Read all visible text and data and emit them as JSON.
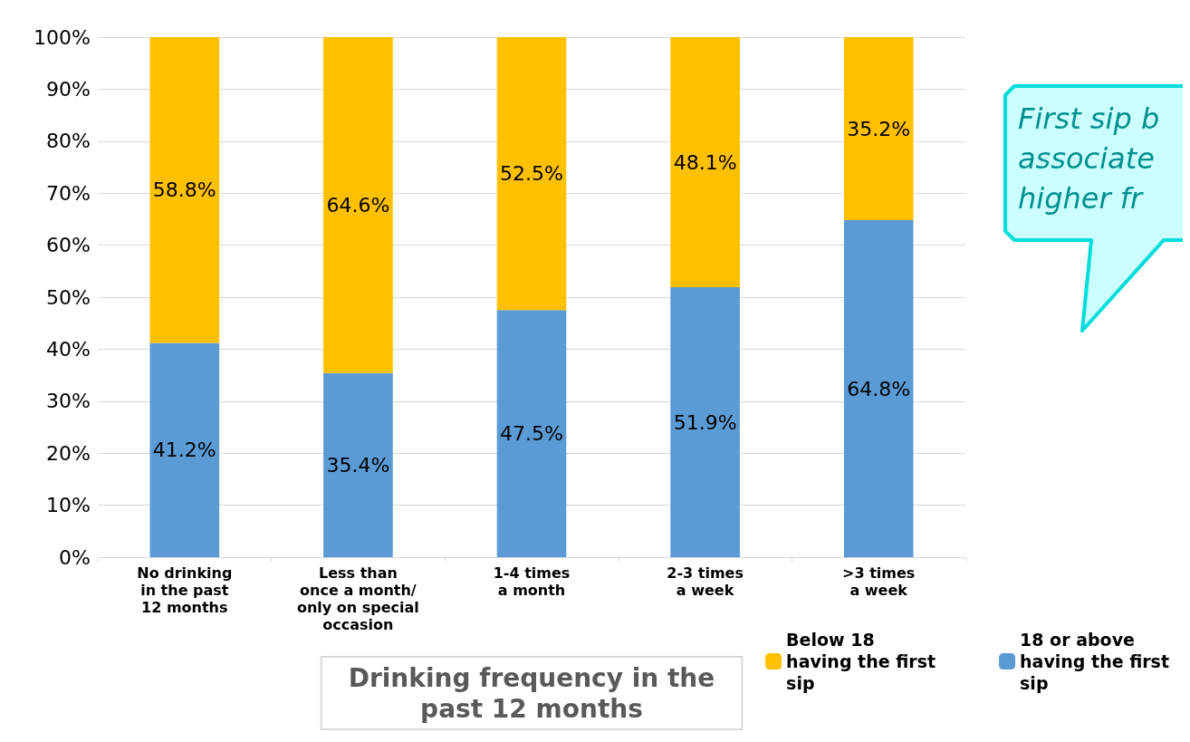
{
  "chart_data": {
    "type": "bar",
    "stacked": true,
    "xlabel": "Drinking frequency in the\npast 12 months",
    "categories": [
      "No drinking\nin the past\n12 months",
      "Less than\nonce a month/\nonly on special\noccasion",
      "1-4 times\na month",
      "2-3 times\na week",
      ">3 times\na week"
    ],
    "series": [
      {
        "name": "18 or above\nhaving the first\nsip",
        "color": "#5b9bd5",
        "values": [
          41.2,
          35.4,
          47.5,
          51.9,
          64.8
        ],
        "value_labels": [
          "41.2%",
          "35.4%",
          "47.5%",
          "51.9%",
          "64.8%"
        ]
      },
      {
        "name": "Below 18\nhaving the first\nsip",
        "color": "#ffc000",
        "values": [
          58.8,
          64.6,
          52.5,
          48.1,
          35.2
        ],
        "value_labels": [
          "58.8%",
          "64.6%",
          "52.5%",
          "48.1%",
          "35.2%"
        ]
      }
    ],
    "ylim": [
      0,
      100
    ],
    "yticks": [
      {
        "value": 0,
        "label": "0%"
      },
      {
        "value": 10,
        "label": "10%"
      },
      {
        "value": 20,
        "label": "20%"
      },
      {
        "value": 30,
        "label": "30%"
      },
      {
        "value": 40,
        "label": "40%"
      },
      {
        "value": 50,
        "label": "50%"
      },
      {
        "value": 60,
        "label": "60%"
      },
      {
        "value": 70,
        "label": "70%"
      },
      {
        "value": 80,
        "label": "80%"
      },
      {
        "value": 90,
        "label": "90%"
      },
      {
        "value": 100,
        "label": "100%"
      }
    ],
    "grid": "y",
    "legend": "bottom right",
    "annotations": [
      "First sip b\nassociate\nhigher fr"
    ]
  }
}
